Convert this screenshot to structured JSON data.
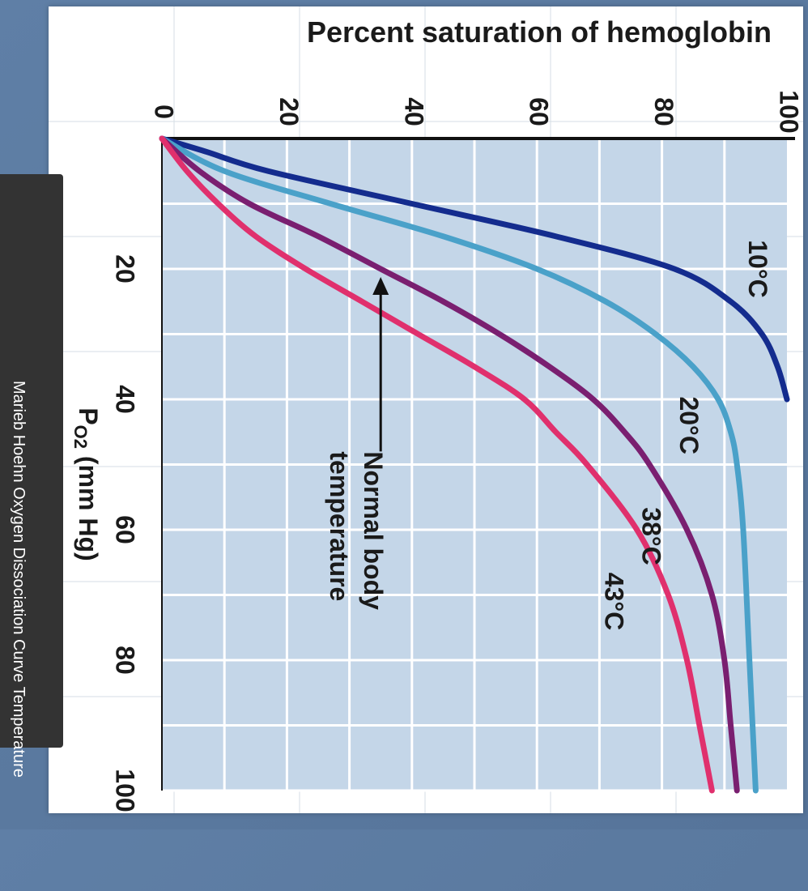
{
  "caption": "Marieb Hoehn Oxygen Dissociation Curve Temperature",
  "colors": {
    "panel_bg": "#c4d6e8",
    "grid": "#ffffff",
    "axis": "#111111",
    "c10": "#142c8e",
    "c20": "#4aa1c9",
    "c38": "#7a1f70",
    "c43": "#e0306d",
    "text": "#1a1a1a"
  },
  "chart_data": {
    "type": "line",
    "title": "Percent saturation of hemoglobin",
    "xlabel_main": "P",
    "xlabel_sub": "O2",
    "xlabel_unit": " (mm Hg)",
    "x_ticks": [
      "20",
      "40",
      "60",
      "80",
      "100"
    ],
    "y_ticks": [
      "0",
      "20",
      "40",
      "60",
      "80",
      "100"
    ],
    "xlim": [
      0,
      100
    ],
    "ylim": [
      0,
      100
    ],
    "annotation": "Normal body temperature",
    "annotation_lines": [
      "Normal body",
      "temperature"
    ],
    "annotation_target": [
      20,
      35
    ],
    "series": [
      {
        "name": "10°C",
        "color_key": "c10",
        "label_at": [
          20,
          95
        ],
        "x": [
          0,
          2,
          5,
          10,
          15,
          20,
          25,
          30,
          35,
          40
        ],
        "y": [
          0,
          7,
          17,
          40,
          63,
          82,
          91,
          96,
          98.5,
          100
        ]
      },
      {
        "name": "20°C",
        "color_key": "c20",
        "label_at": [
          44,
          84
        ],
        "x": [
          0,
          5,
          10,
          15,
          20,
          25,
          30,
          35,
          40,
          45,
          50,
          60,
          80,
          100
        ],
        "y": [
          0,
          10,
          27,
          45,
          60,
          71,
          79,
          85,
          89,
          91,
          92,
          93,
          94,
          95
        ]
      },
      {
        "name": "38°C",
        "color_key": "c38",
        "label_at": [
          61,
          78
        ],
        "x": [
          0,
          5,
          10,
          15,
          20,
          25,
          30,
          35,
          40,
          45,
          50,
          60,
          70,
          80,
          90,
          100
        ],
        "y": [
          0,
          6,
          14,
          25,
          35,
          45,
          54,
          62,
          69,
          74,
          78,
          84,
          88,
          90,
          91,
          92
        ]
      },
      {
        "name": "43°C",
        "color_key": "c43",
        "label_at": [
          71,
          72
        ],
        "x": [
          0,
          5,
          10,
          15,
          20,
          25,
          30,
          35,
          40,
          45,
          50,
          60,
          70,
          80,
          90,
          100
        ],
        "y": [
          0,
          4,
          9,
          15,
          23,
          32,
          41,
          50,
          58,
          63,
          68,
          76,
          81,
          84,
          86,
          88
        ]
      }
    ]
  }
}
